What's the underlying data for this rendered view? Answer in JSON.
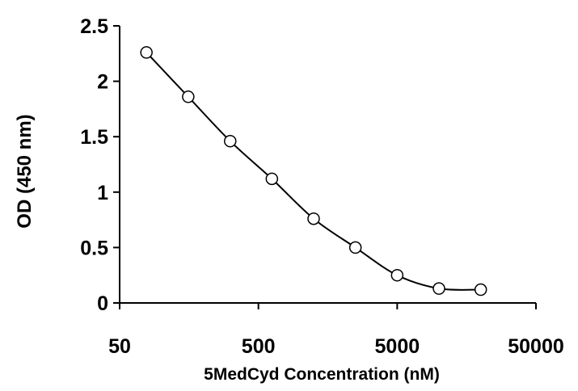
{
  "chart_data": {
    "type": "line",
    "title": "",
    "xlabel": "5MedCyd Concentration (nM)",
    "ylabel": "OD (450 nm)",
    "x_scale": "log",
    "xlim": [
      50,
      50000
    ],
    "ylim": [
      0,
      2.5
    ],
    "x_ticks": [
      50,
      500,
      5000,
      50000
    ],
    "x_tick_labels": [
      "50",
      "500",
      "5000",
      "50000"
    ],
    "y_ticks": [
      0,
      0.5,
      1,
      1.5,
      2,
      2.5
    ],
    "y_tick_labels": [
      "0",
      "0.5",
      "1",
      "1.5",
      "2",
      "2.5"
    ],
    "grid": false,
    "legend": "none",
    "line_color": "#000000",
    "marker": "open-circle",
    "series": [
      {
        "x": [
          78,
          156,
          313,
          625,
          1250,
          2500,
          5000,
          10000,
          20000
        ],
        "y": [
          2.26,
          1.86,
          1.46,
          1.12,
          0.76,
          0.5,
          0.25,
          0.13,
          0.12
        ]
      }
    ]
  }
}
